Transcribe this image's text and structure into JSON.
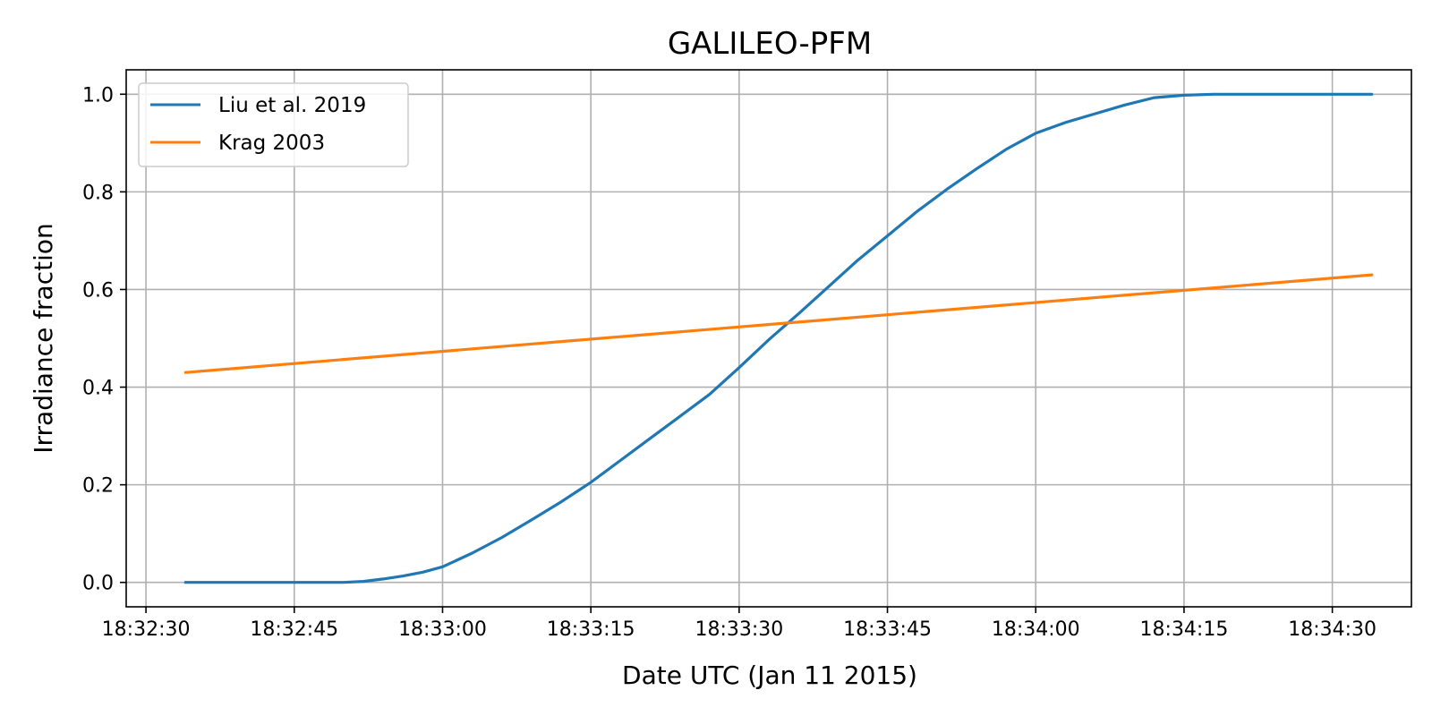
{
  "chart_data": {
    "type": "line",
    "title": "GALILEO-PFM",
    "xlabel": "Date UTC (Jan 11 2015)",
    "ylabel": "Irradiance fraction",
    "xlim": [
      "18:32:28",
      "18:34:38"
    ],
    "ylim": [
      -0.05,
      1.05
    ],
    "x_ticks": [
      "18:32:30",
      "18:32:45",
      "18:33:00",
      "18:33:15",
      "18:33:30",
      "18:33:45",
      "18:34:00",
      "18:34:15",
      "18:34:30"
    ],
    "y_ticks": [
      "0.0",
      "0.2",
      "0.4",
      "0.6",
      "0.8",
      "1.0"
    ],
    "grid": true,
    "legend_position": "top-left",
    "series": [
      {
        "name": "Liu et al. 2019",
        "color": "#1f77b4",
        "x": [
          "18:32:34",
          "18:32:40",
          "18:32:45",
          "18:32:50",
          "18:32:52",
          "18:32:54",
          "18:32:56",
          "18:32:58",
          "18:33:00",
          "18:33:03",
          "18:33:06",
          "18:33:09",
          "18:33:12",
          "18:33:15",
          "18:33:18",
          "18:33:21",
          "18:33:24",
          "18:33:27",
          "18:33:30",
          "18:33:33",
          "18:33:36",
          "18:33:39",
          "18:33:42",
          "18:33:45",
          "18:33:48",
          "18:33:51",
          "18:33:54",
          "18:33:57",
          "18:34:00",
          "18:34:03",
          "18:34:06",
          "18:34:09",
          "18:34:12",
          "18:34:15",
          "18:34:18",
          "18:34:21",
          "18:34:25",
          "18:34:30",
          "18:34:34"
        ],
        "y": [
          0.0,
          0.0,
          0.0,
          0.0,
          0.002,
          0.007,
          0.013,
          0.021,
          0.032,
          0.06,
          0.092,
          0.128,
          0.165,
          0.205,
          0.25,
          0.295,
          0.34,
          0.385,
          0.44,
          0.497,
          0.55,
          0.605,
          0.66,
          0.71,
          0.76,
          0.805,
          0.847,
          0.887,
          0.92,
          0.942,
          0.96,
          0.978,
          0.993,
          0.998,
          1.0,
          1.0,
          1.0,
          1.0,
          1.0
        ]
      },
      {
        "name": "Krag 2003",
        "color": "#ff7f0e",
        "x": [
          "18:32:34",
          "18:34:34"
        ],
        "y": [
          0.43,
          0.63
        ]
      }
    ]
  }
}
